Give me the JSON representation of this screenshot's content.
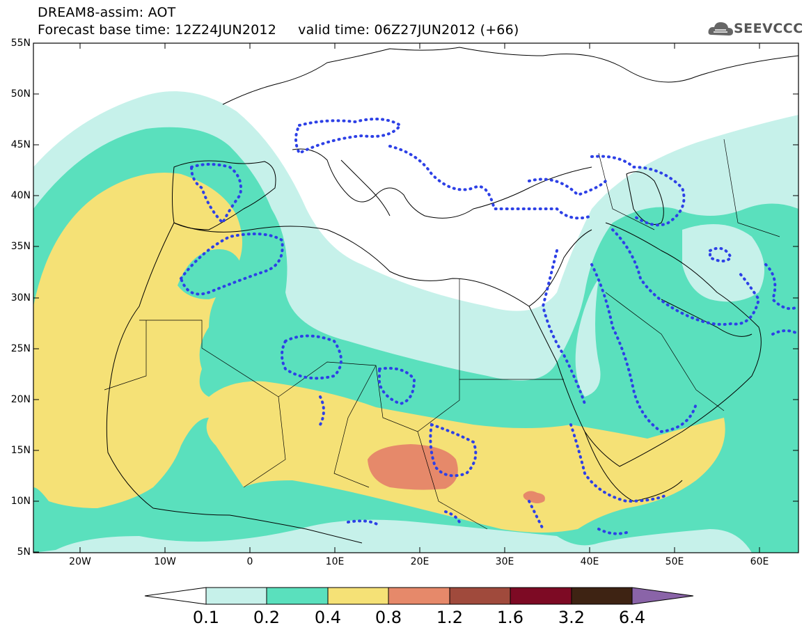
{
  "header": {
    "line1": "DREAM8-assim: AOT",
    "line2": "Forecast base time: 12Z24JUN2012     valid time: 06Z27JUN2012 (+66)"
  },
  "logo": {
    "text": "SEEVCCC",
    "icon": "cloud-icon"
  },
  "map": {
    "lat_labels": [
      "55N",
      "50N",
      "45N",
      "40N",
      "35N",
      "30N",
      "25N",
      "20N",
      "15N",
      "10N",
      "5N"
    ],
    "lon_labels": [
      "20W",
      "10W",
      "0",
      "10E",
      "20E",
      "30E",
      "40E",
      "50E",
      "60E"
    ],
    "lat_range": [
      5,
      55
    ],
    "lon_range": [
      -25,
      65
    ],
    "contour_line_style": "dotted blue"
  },
  "colorbar": {
    "labels": [
      "0.1",
      "0.2",
      "0.4",
      "0.8",
      "1.2",
      "1.6",
      "3.2",
      "6.4"
    ],
    "colors": [
      "#ffffff",
      "#c6f1ea",
      "#5ae0bd",
      "#f5e176",
      "#e6896a",
      "#a04a3c",
      "#7d0a24",
      "#3e2313",
      "#8a64a8"
    ]
  },
  "colors": {
    "level_01": "#c6f1ea",
    "level_02": "#5ae0bd",
    "level_04": "#f5e176",
    "level_08": "#e6896a",
    "contour": "#2d40e6"
  }
}
